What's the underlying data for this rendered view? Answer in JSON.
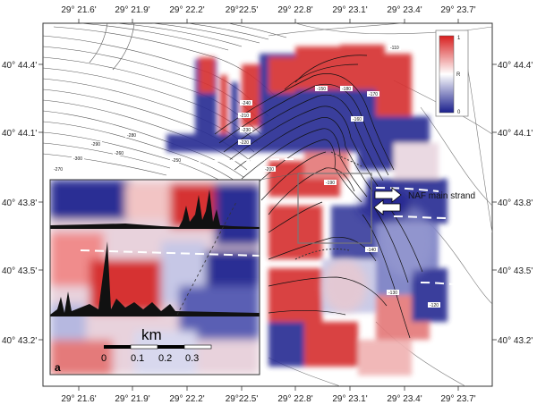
{
  "map": {
    "lon_labels_top": [
      "29° 21.6'",
      "29° 21.9'",
      "29° 22.2'",
      "29°22.5'",
      "29° 22.8'",
      "29° 23.1'",
      "29° 23.4'",
      "29° 23.7'"
    ],
    "lon_labels_bottom": [
      "29° 21.6'",
      "29° 21.9'",
      "29° 22.2'",
      "29°22.5'",
      "29° 22.8'",
      "29° 23.1'",
      "29° 23.4'",
      "29° 23.7'"
    ],
    "lat_labels_left": [
      "40° 44.4'",
      "40° 44.1'",
      "40° 43.8'",
      "40° 43.5'",
      "40° 43.2'"
    ],
    "lat_labels_right": [
      "40° 44.4'",
      "40° 44.1'",
      "40° 43.8'",
      "40° 43.5'",
      "40° 43.2'"
    ],
    "annotation": "NAF main strand",
    "contour_labels": [
      "-110",
      "-150",
      "-180",
      "-170",
      "-160",
      "-210",
      "-200",
      "-190",
      "-270",
      "-260",
      "-250",
      "-230",
      "-220",
      "-240",
      "-130",
      "-140",
      "-120",
      "-280",
      "-290",
      "-300"
    ]
  },
  "legend": {
    "max_label": "1",
    "mid_label": "R",
    "min_label": "0",
    "colors": {
      "high": "#d81e1e",
      "mid": "#ffffff",
      "low": "#1a1f8c"
    }
  },
  "inset": {
    "panel_label": "a",
    "scale_unit": "km",
    "scale_ticks": [
      "0",
      "0.1",
      "0.2",
      "0.3"
    ]
  }
}
